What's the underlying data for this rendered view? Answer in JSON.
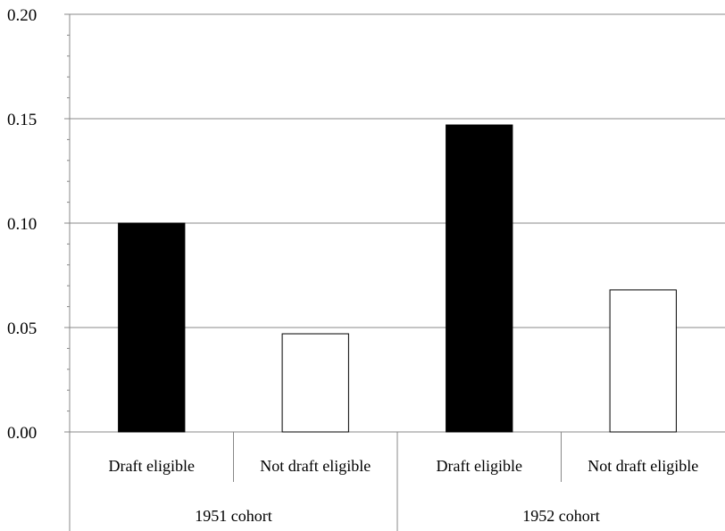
{
  "chart_data": {
    "type": "bar",
    "title": "",
    "xlabel": "",
    "ylabel": "",
    "ylim": [
      0,
      0.2
    ],
    "yticks": [
      "0.00",
      "0.05",
      "0.10",
      "0.15",
      "0.20"
    ],
    "grid": true,
    "legend": "none",
    "groups": [
      {
        "label": "1951 cohort",
        "bars": [
          {
            "category": "Draft eligible",
            "value": 0.1,
            "color": "#000000"
          },
          {
            "category": "Not draft eligible",
            "value": 0.047,
            "color": "#ffffff"
          }
        ]
      },
      {
        "label": "1952 cohort",
        "bars": [
          {
            "category": "Draft eligible",
            "value": 0.147,
            "color": "#000000"
          },
          {
            "category": "Not draft eligible",
            "value": 0.068,
            "color": "#ffffff"
          }
        ]
      }
    ]
  }
}
